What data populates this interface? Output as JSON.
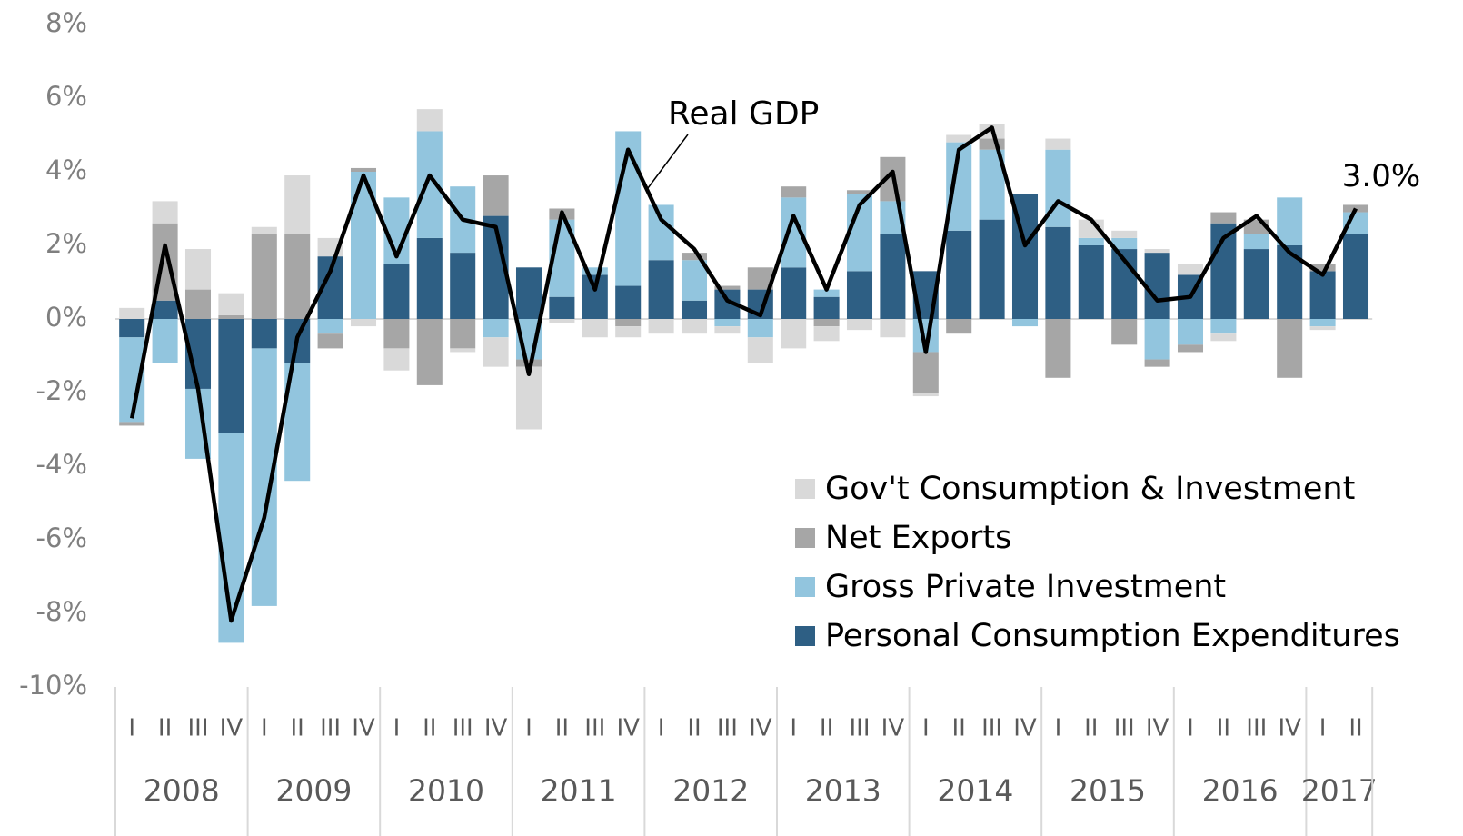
{
  "chart_data": {
    "type": "bar",
    "stacked": true,
    "ylim": [
      -10,
      8
    ],
    "yticks": [
      {
        "value": -10,
        "label": "-10%"
      },
      {
        "value": -8,
        "label": "-8%"
      },
      {
        "value": -6,
        "label": "-6%"
      },
      {
        "value": -4,
        "label": "-4%"
      },
      {
        "value": -2,
        "label": "-2%"
      },
      {
        "value": 0,
        "label": "0%"
      },
      {
        "value": 2,
        "label": "2%"
      },
      {
        "value": 4,
        "label": "4%"
      },
      {
        "value": 6,
        "label": "6%"
      },
      {
        "value": 8,
        "label": "8%"
      }
    ],
    "categories": [
      "I",
      "II",
      "III",
      "IV",
      "I",
      "II",
      "III",
      "IV",
      "I",
      "II",
      "III",
      "IV",
      "I",
      "II",
      "III",
      "IV",
      "I",
      "II",
      "III",
      "IV",
      "I",
      "II",
      "III",
      "IV",
      "I",
      "II",
      "III",
      "IV",
      "I",
      "II",
      "III",
      "IV",
      "I",
      "II",
      "III",
      "IV",
      "I",
      "II"
    ],
    "years": [
      "2008",
      "2009",
      "2010",
      "2011",
      "2012",
      "2013",
      "2014",
      "2015",
      "2016",
      "2017"
    ],
    "legend": "lower right",
    "series": [
      {
        "name": "Personal Consumption Expenditures",
        "color": "#2e5f84",
        "values": [
          -0.5,
          0.5,
          -1.9,
          -3.1,
          -0.8,
          -1.2,
          1.7,
          0.0,
          1.5,
          2.2,
          1.8,
          2.8,
          1.4,
          0.6,
          1.2,
          0.9,
          1.6,
          0.5,
          0.8,
          0.8,
          1.4,
          0.6,
          1.3,
          2.3,
          1.3,
          2.4,
          2.7,
          3.4,
          2.5,
          2.0,
          1.9,
          1.8,
          1.2,
          2.6,
          1.9,
          2.0,
          1.3,
          2.3
        ]
      },
      {
        "name": "Gross Private Investment",
        "color": "#92c5de",
        "values": [
          -2.3,
          -1.2,
          -1.9,
          -5.7,
          -7.0,
          -3.2,
          -0.4,
          4.0,
          1.8,
          2.9,
          1.8,
          -0.5,
          -1.1,
          2.1,
          0.2,
          4.2,
          1.5,
          1.1,
          -0.2,
          -0.5,
          1.9,
          0.2,
          2.1,
          0.9,
          -0.9,
          2.4,
          1.9,
          -0.2,
          2.1,
          0.2,
          0.3,
          -1.1,
          -0.7,
          -0.4,
          0.4,
          1.3,
          -0.2,
          0.6
        ]
      },
      {
        "name": "Net Exports",
        "color": "#a6a6a6",
        "values": [
          -0.1,
          2.1,
          0.8,
          0.1,
          2.3,
          2.3,
          -0.4,
          0.1,
          -0.8,
          -1.8,
          -0.8,
          1.1,
          -0.2,
          0.3,
          0,
          -0.2,
          0,
          0.2,
          0.1,
          0.6,
          0.3,
          -0.2,
          0.1,
          1.2,
          -1.1,
          -0.4,
          0.3,
          0,
          -1.6,
          0,
          -0.7,
          -0.2,
          -0.2,
          0.3,
          0.4,
          -1.6,
          0.2,
          0.2
        ]
      },
      {
        "name": "Gov't Consumption & Investment",
        "color": "#d9d9d9",
        "values": [
          0.3,
          0.6,
          1.1,
          0.6,
          0.2,
          1.6,
          0.5,
          -0.2,
          -0.6,
          0.6,
          -0.1,
          -0.8,
          -1.7,
          -0.1,
          -0.5,
          -0.3,
          -0.4,
          -0.4,
          -0.2,
          -0.7,
          -0.8,
          -0.4,
          -0.3,
          -0.5,
          -0.1,
          0.2,
          0.4,
          0,
          0.3,
          0.5,
          0.2,
          0.1,
          0.3,
          -0.2,
          0,
          0,
          -0.1,
          0
        ]
      }
    ],
    "line": {
      "name": "Real GDP",
      "color": "#000000",
      "values": [
        -2.7,
        2.0,
        -1.9,
        -8.2,
        -5.4,
        -0.5,
        1.3,
        3.9,
        1.7,
        3.9,
        2.7,
        2.5,
        -1.5,
        2.9,
        0.8,
        4.6,
        2.7,
        1.9,
        0.5,
        0.1,
        2.8,
        0.8,
        3.1,
        4.0,
        -0.9,
        4.6,
        5.2,
        2.0,
        3.2,
        2.7,
        1.6,
        0.5,
        0.6,
        2.2,
        2.8,
        1.8,
        1.2,
        3.0
      ],
      "value_labels": [
        null,
        null,
        null,
        null,
        null,
        null,
        null,
        null,
        null,
        null,
        null,
        null,
        null,
        null,
        null,
        null,
        null,
        null,
        null,
        null,
        null,
        null,
        null,
        null,
        null,
        null,
        null,
        null,
        null,
        null,
        null,
        null,
        null,
        null,
        null,
        null,
        null,
        "3.0%"
      ]
    }
  }
}
